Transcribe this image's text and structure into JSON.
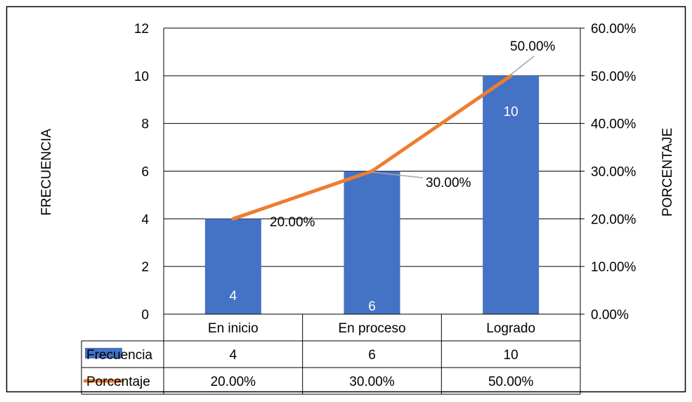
{
  "chart_data": {
    "type": "bar",
    "categories": [
      "En inicio",
      "En proceso",
      "Logrado"
    ],
    "series": [
      {
        "name": "Frecuencia",
        "kind": "bar",
        "axis": "left",
        "values": [
          4,
          6,
          10
        ],
        "color": "#4472C4"
      },
      {
        "name": "Porcentaje",
        "kind": "line",
        "axis": "right",
        "values": [
          0.2,
          0.3,
          0.5
        ],
        "color": "#ED7D31"
      }
    ],
    "ylabel": "FRECUENCIA",
    "y2label": "PORCENTAJE",
    "ylim": [
      0,
      12
    ],
    "y2lim": [
      0,
      0.6
    ],
    "yticks": [
      "0",
      "2",
      "4",
      "6",
      "8",
      "10",
      "12"
    ],
    "y2ticks": [
      "0.00%",
      "10.00%",
      "20.00%",
      "30.00%",
      "40.00%",
      "50.00%",
      "60.00%"
    ],
    "bar_labels": [
      "4",
      "6",
      "10"
    ],
    "line_labels": [
      "20.00%",
      "30.00%",
      "50.00%"
    ],
    "grid": true,
    "legend": "data-table",
    "data_table": {
      "rows": [
        {
          "legend": "Frecuencia",
          "cells": [
            "4",
            "6",
            "10"
          ]
        },
        {
          "legend": "Porcentaje",
          "cells": [
            "20.00%",
            "30.00%",
            "50.00%"
          ]
        }
      ]
    }
  }
}
